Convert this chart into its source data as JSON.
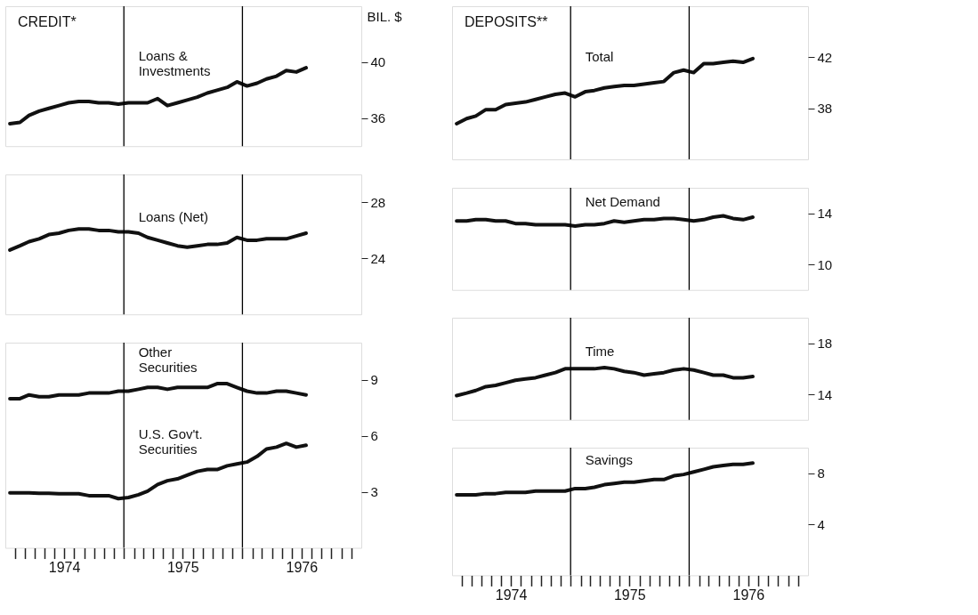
{
  "chart_data": [
    {
      "type": "line",
      "title": "CREDIT*",
      "ylabel": "BIL. $",
      "tick_labels": "y",
      "xlim": [
        "1974-01-01",
        "1977-01-01"
      ],
      "ylim": [
        34,
        44
      ],
      "yticks": [
        36,
        40
      ],
      "x": [
        "1974-01-15",
        "1974-02-15",
        "1974-03-15",
        "1974-04-15",
        "1974-05-15",
        "1974-06-15",
        "1974-07-15",
        "1974-08-15",
        "1974-09-15",
        "1974-10-15",
        "1974-11-15",
        "1974-12-15",
        "1975-01-15",
        "1975-02-15",
        "1975-03-15",
        "1975-04-15",
        "1975-05-15",
        "1975-06-15",
        "1975-07-15",
        "1975-08-15",
        "1975-09-15",
        "1975-10-15",
        "1975-11-15",
        "1975-12-15",
        "1976-01-15",
        "1976-02-15",
        "1976-03-15",
        "1976-04-15",
        "1976-05-15",
        "1976-06-15",
        "1976-07-15"
      ],
      "series": [
        {
          "name": "Loans & Investments",
          "color": "#111111",
          "values": [
            35.6,
            35.7,
            36.2,
            36.5,
            36.7,
            36.9,
            37.1,
            37.2,
            37.2,
            37.1,
            37.1,
            37.0,
            37.1,
            37.1,
            37.1,
            37.4,
            36.9,
            37.1,
            37.3,
            37.5,
            37.8,
            38.0,
            38.2,
            38.6,
            38.3,
            38.5,
            38.8,
            39.0,
            39.4,
            39.3,
            39.6
          ]
        }
      ],
      "ref_lines": [
        {
          "axis": "x",
          "value": "1975-01-01",
          "color": "#000000"
        },
        {
          "axis": "x",
          "value": "1976-01-01",
          "color": "#000000"
        }
      ]
    },
    {
      "type": "line",
      "tick_labels": "y",
      "xlim": [
        "1974-01-01",
        "1977-01-01"
      ],
      "ylim": [
        20,
        30
      ],
      "yticks": [
        24,
        28
      ],
      "x": [
        "1974-01-15",
        "1974-02-15",
        "1974-03-15",
        "1974-04-15",
        "1974-05-15",
        "1974-06-15",
        "1974-07-15",
        "1974-08-15",
        "1974-09-15",
        "1974-10-15",
        "1974-11-15",
        "1974-12-15",
        "1975-01-15",
        "1975-02-15",
        "1975-03-15",
        "1975-04-15",
        "1975-05-15",
        "1975-06-15",
        "1975-07-15",
        "1975-08-15",
        "1975-09-15",
        "1975-10-15",
        "1975-11-15",
        "1975-12-15",
        "1976-01-15",
        "1976-02-15",
        "1976-03-15",
        "1976-04-15",
        "1976-05-15",
        "1976-06-15",
        "1976-07-15"
      ],
      "series": [
        {
          "name": "Loans (Net)",
          "color": "#111111",
          "values": [
            24.6,
            24.9,
            25.2,
            25.4,
            25.7,
            25.8,
            26.0,
            26.1,
            26.1,
            26.0,
            26.0,
            25.9,
            25.9,
            25.8,
            25.5,
            25.3,
            25.1,
            24.9,
            24.8,
            24.9,
            25.0,
            25.0,
            25.1,
            25.5,
            25.3,
            25.3,
            25.4,
            25.4,
            25.4,
            25.6,
            25.8
          ]
        }
      ],
      "ref_lines": [
        {
          "axis": "x",
          "value": "1975-01-01",
          "color": "#000000"
        },
        {
          "axis": "x",
          "value": "1976-01-01",
          "color": "#000000"
        }
      ]
    },
    {
      "type": "line",
      "xlim": [
        "1974-01-01",
        "1977-01-01"
      ],
      "ylim": [
        0,
        11
      ],
      "yticks": [
        3,
        6,
        9
      ],
      "x": [
        "1974-01-15",
        "1974-02-15",
        "1974-03-15",
        "1974-04-15",
        "1974-05-15",
        "1974-06-15",
        "1974-07-15",
        "1974-08-15",
        "1974-09-15",
        "1974-10-15",
        "1974-11-15",
        "1974-12-15",
        "1975-01-15",
        "1975-02-15",
        "1975-03-15",
        "1975-04-15",
        "1975-05-15",
        "1975-06-15",
        "1975-07-15",
        "1975-08-15",
        "1975-09-15",
        "1975-10-15",
        "1975-11-15",
        "1975-12-15",
        "1976-01-15",
        "1976-02-15",
        "1976-03-15",
        "1976-04-15",
        "1976-05-15",
        "1976-06-15",
        "1976-07-15"
      ],
      "xticks": [
        {
          "value": "1974-02-01",
          "label": null
        },
        {
          "value": "1974-03-01",
          "label": null
        },
        {
          "value": "1974-04-01",
          "label": null
        },
        {
          "value": "1974-05-01",
          "label": null
        },
        {
          "value": "1974-06-01",
          "label": null
        },
        {
          "value": "1974-07-01",
          "label": "1974"
        },
        {
          "value": "1974-08-01",
          "label": null
        },
        {
          "value": "1974-09-01",
          "label": null
        },
        {
          "value": "1974-10-01",
          "label": null
        },
        {
          "value": "1974-11-01",
          "label": null
        },
        {
          "value": "1974-12-01",
          "label": null
        },
        {
          "value": "1975-01-01",
          "label": null
        },
        {
          "value": "1975-02-01",
          "label": null
        },
        {
          "value": "1975-03-01",
          "label": null
        },
        {
          "value": "1975-04-01",
          "label": null
        },
        {
          "value": "1975-05-01",
          "label": null
        },
        {
          "value": "1975-06-01",
          "label": null
        },
        {
          "value": "1975-07-01",
          "label": "1975"
        },
        {
          "value": "1975-08-01",
          "label": null
        },
        {
          "value": "1975-09-01",
          "label": null
        },
        {
          "value": "1975-10-01",
          "label": null
        },
        {
          "value": "1975-11-01",
          "label": null
        },
        {
          "value": "1975-12-01",
          "label": null
        },
        {
          "value": "1976-01-01",
          "label": null
        },
        {
          "value": "1976-02-01",
          "label": null
        },
        {
          "value": "1976-03-01",
          "label": null
        },
        {
          "value": "1976-04-01",
          "label": null
        },
        {
          "value": "1976-05-01",
          "label": null
        },
        {
          "value": "1976-06-01",
          "label": null
        },
        {
          "value": "1976-07-01",
          "label": "1976"
        },
        {
          "value": "1976-08-01",
          "label": null
        },
        {
          "value": "1976-09-01",
          "label": null
        },
        {
          "value": "1976-10-01",
          "label": null
        },
        {
          "value": "1976-11-01",
          "label": null
        },
        {
          "value": "1976-12-01",
          "label": null
        }
      ],
      "series": [
        {
          "name": "Other Securities",
          "color": "#111111",
          "values": [
            8.0,
            8.0,
            8.2,
            8.1,
            8.1,
            8.2,
            8.2,
            8.2,
            8.3,
            8.3,
            8.3,
            8.4,
            8.4,
            8.5,
            8.6,
            8.6,
            8.5,
            8.6,
            8.6,
            8.6,
            8.6,
            8.8,
            8.8,
            8.6,
            8.4,
            8.3,
            8.3,
            8.4,
            8.4,
            8.3,
            8.2
          ]
        },
        {
          "name": "U.S. Gov't. Securities",
          "color": "#111111",
          "values": [
            2.95,
            2.95,
            2.95,
            2.93,
            2.93,
            2.9,
            2.9,
            2.9,
            2.8,
            2.8,
            2.8,
            2.64,
            2.7,
            2.85,
            3.04,
            3.4,
            3.6,
            3.7,
            3.9,
            4.1,
            4.2,
            4.2,
            4.4,
            4.5,
            4.6,
            4.9,
            5.3,
            5.4,
            5.6,
            5.4,
            5.5
          ]
        }
      ],
      "ref_lines": [
        {
          "axis": "x",
          "value": "1975-01-01",
          "color": "#000000"
        },
        {
          "axis": "x",
          "value": "1976-01-01",
          "color": "#000000"
        }
      ]
    },
    {
      "type": "line",
      "title": "DEPOSITS**",
      "tick_labels": "y",
      "xlim": [
        "1974-01-01",
        "1977-01-01"
      ],
      "ylim": [
        34,
        46
      ],
      "yticks": [
        38,
        42
      ],
      "x": [
        "1974-01-15",
        "1974-02-15",
        "1974-03-15",
        "1974-04-15",
        "1974-05-15",
        "1974-06-15",
        "1974-07-15",
        "1974-08-15",
        "1974-09-15",
        "1974-10-15",
        "1974-11-15",
        "1974-12-15",
        "1975-01-15",
        "1975-02-15",
        "1975-03-15",
        "1975-04-15",
        "1975-05-15",
        "1975-06-15",
        "1975-07-15",
        "1975-08-15",
        "1975-09-15",
        "1975-10-15",
        "1975-11-15",
        "1975-12-15",
        "1976-01-15",
        "1976-02-15",
        "1976-03-15",
        "1976-04-15",
        "1976-05-15",
        "1976-06-15",
        "1976-07-15"
      ],
      "series": [
        {
          "name": "Total",
          "color": "#111111",
          "values": [
            36.8,
            37.2,
            37.4,
            37.9,
            37.9,
            38.3,
            38.4,
            38.5,
            38.7,
            38.9,
            39.1,
            39.2,
            38.9,
            39.3,
            39.4,
            39.6,
            39.7,
            39.8,
            39.8,
            39.9,
            40.0,
            40.1,
            40.8,
            41.0,
            40.8,
            41.5,
            41.5,
            41.6,
            41.7,
            41.6,
            41.9
          ]
        }
      ],
      "ref_lines": [
        {
          "axis": "x",
          "value": "1975-01-01",
          "color": "#000000"
        },
        {
          "axis": "x",
          "value": "1976-01-01",
          "color": "#000000"
        }
      ]
    },
    {
      "type": "line",
      "tick_labels": "y",
      "xlim": [
        "1974-01-01",
        "1977-01-01"
      ],
      "ylim": [
        8,
        16
      ],
      "yticks": [
        10,
        14
      ],
      "x": [
        "1974-01-15",
        "1974-02-15",
        "1974-03-15",
        "1974-04-15",
        "1974-05-15",
        "1974-06-15",
        "1974-07-15",
        "1974-08-15",
        "1974-09-15",
        "1974-10-15",
        "1974-11-15",
        "1974-12-15",
        "1975-01-15",
        "1975-02-15",
        "1975-03-15",
        "1975-04-15",
        "1975-05-15",
        "1975-06-15",
        "1975-07-15",
        "1975-08-15",
        "1975-09-15",
        "1975-10-15",
        "1975-11-15",
        "1975-12-15",
        "1976-01-15",
        "1976-02-15",
        "1976-03-15",
        "1976-04-15",
        "1976-05-15",
        "1976-06-15",
        "1976-07-15"
      ],
      "series": [
        {
          "name": "Net Demand",
          "color": "#111111",
          "values": [
            13.4,
            13.4,
            13.5,
            13.5,
            13.4,
            13.4,
            13.2,
            13.2,
            13.1,
            13.1,
            13.1,
            13.1,
            13.0,
            13.1,
            13.1,
            13.2,
            13.4,
            13.3,
            13.4,
            13.5,
            13.5,
            13.6,
            13.6,
            13.5,
            13.4,
            13.5,
            13.7,
            13.8,
            13.6,
            13.5,
            13.7
          ]
        }
      ],
      "ref_lines": [
        {
          "axis": "x",
          "value": "1975-01-01",
          "color": "#000000"
        },
        {
          "axis": "x",
          "value": "1976-01-01",
          "color": "#000000"
        }
      ]
    },
    {
      "type": "line",
      "tick_labels": "y",
      "xlim": [
        "1974-01-01",
        "1977-01-01"
      ],
      "ylim": [
        12,
        20
      ],
      "yticks": [
        14,
        18
      ],
      "x": [
        "1974-01-15",
        "1974-02-15",
        "1974-03-15",
        "1974-04-15",
        "1974-05-15",
        "1974-06-15",
        "1974-07-15",
        "1974-08-15",
        "1974-09-15",
        "1974-10-15",
        "1974-11-15",
        "1974-12-15",
        "1975-01-15",
        "1975-02-15",
        "1975-03-15",
        "1975-04-15",
        "1975-05-15",
        "1975-06-15",
        "1975-07-15",
        "1975-08-15",
        "1975-09-15",
        "1975-10-15",
        "1975-11-15",
        "1975-12-15",
        "1976-01-15",
        "1976-02-15",
        "1976-03-15",
        "1976-04-15",
        "1976-05-15",
        "1976-06-15",
        "1976-07-15"
      ],
      "series": [
        {
          "name": "Time",
          "color": "#111111",
          "values": [
            13.9,
            14.1,
            14.3,
            14.6,
            14.7,
            14.9,
            15.1,
            15.2,
            15.3,
            15.5,
            15.7,
            16.0,
            16.0,
            16.0,
            16.0,
            16.1,
            16.0,
            15.8,
            15.7,
            15.5,
            15.6,
            15.7,
            15.9,
            16.0,
            15.9,
            15.7,
            15.5,
            15.5,
            15.3,
            15.3,
            15.4
          ]
        }
      ],
      "ref_lines": [
        {
          "axis": "x",
          "value": "1975-01-01",
          "color": "#000000"
        },
        {
          "axis": "x",
          "value": "1976-01-01",
          "color": "#000000"
        }
      ]
    },
    {
      "type": "line",
      "xlim": [
        "1974-01-01",
        "1977-01-01"
      ],
      "ylim": [
        0,
        10
      ],
      "yticks": [
        4,
        8
      ],
      "x": [
        "1974-01-15",
        "1974-02-15",
        "1974-03-15",
        "1974-04-15",
        "1974-05-15",
        "1974-06-15",
        "1974-07-15",
        "1974-08-15",
        "1974-09-15",
        "1974-10-15",
        "1974-11-15",
        "1974-12-15",
        "1975-01-15",
        "1975-02-15",
        "1975-03-15",
        "1975-04-15",
        "1975-05-15",
        "1975-06-15",
        "1975-07-15",
        "1975-08-15",
        "1975-09-15",
        "1975-10-15",
        "1975-11-15",
        "1975-12-15",
        "1976-01-15",
        "1976-02-15",
        "1976-03-15",
        "1976-04-15",
        "1976-05-15",
        "1976-06-15",
        "1976-07-15"
      ],
      "xticks": [
        {
          "value": "1974-02-01",
          "label": null
        },
        {
          "value": "1974-03-01",
          "label": null
        },
        {
          "value": "1974-04-01",
          "label": null
        },
        {
          "value": "1974-05-01",
          "label": null
        },
        {
          "value": "1974-06-01",
          "label": null
        },
        {
          "value": "1974-07-01",
          "label": "1974"
        },
        {
          "value": "1974-08-01",
          "label": null
        },
        {
          "value": "1974-09-01",
          "label": null
        },
        {
          "value": "1974-10-01",
          "label": null
        },
        {
          "value": "1974-11-01",
          "label": null
        },
        {
          "value": "1974-12-01",
          "label": null
        },
        {
          "value": "1975-01-01",
          "label": null
        },
        {
          "value": "1975-02-01",
          "label": null
        },
        {
          "value": "1975-03-01",
          "label": null
        },
        {
          "value": "1975-04-01",
          "label": null
        },
        {
          "value": "1975-05-01",
          "label": null
        },
        {
          "value": "1975-06-01",
          "label": null
        },
        {
          "value": "1975-07-01",
          "label": "1975"
        },
        {
          "value": "1975-08-01",
          "label": null
        },
        {
          "value": "1975-09-01",
          "label": null
        },
        {
          "value": "1975-10-01",
          "label": null
        },
        {
          "value": "1975-11-01",
          "label": null
        },
        {
          "value": "1975-12-01",
          "label": null
        },
        {
          "value": "1976-01-01",
          "label": null
        },
        {
          "value": "1976-02-01",
          "label": null
        },
        {
          "value": "1976-03-01",
          "label": null
        },
        {
          "value": "1976-04-01",
          "label": null
        },
        {
          "value": "1976-05-01",
          "label": null
        },
        {
          "value": "1976-06-01",
          "label": null
        },
        {
          "value": "1976-07-01",
          "label": "1976"
        },
        {
          "value": "1976-08-01",
          "label": null
        },
        {
          "value": "1976-09-01",
          "label": null
        },
        {
          "value": "1976-10-01",
          "label": null
        },
        {
          "value": "1976-11-01",
          "label": null
        },
        {
          "value": "1976-12-01",
          "label": null
        }
      ],
      "series": [
        {
          "name": "Savings",
          "color": "#111111",
          "values": [
            6.3,
            6.3,
            6.3,
            6.4,
            6.4,
            6.5,
            6.5,
            6.5,
            6.6,
            6.6,
            6.6,
            6.6,
            6.8,
            6.8,
            6.9,
            7.1,
            7.2,
            7.3,
            7.3,
            7.4,
            7.5,
            7.5,
            7.8,
            7.9,
            8.1,
            8.3,
            8.5,
            8.6,
            8.7,
            8.7,
            8.8
          ]
        }
      ],
      "ref_lines": [
        {
          "axis": "x",
          "value": "1975-01-01",
          "color": "#000000"
        },
        {
          "axis": "x",
          "value": "1976-01-01",
          "color": "#000000"
        }
      ]
    }
  ]
}
